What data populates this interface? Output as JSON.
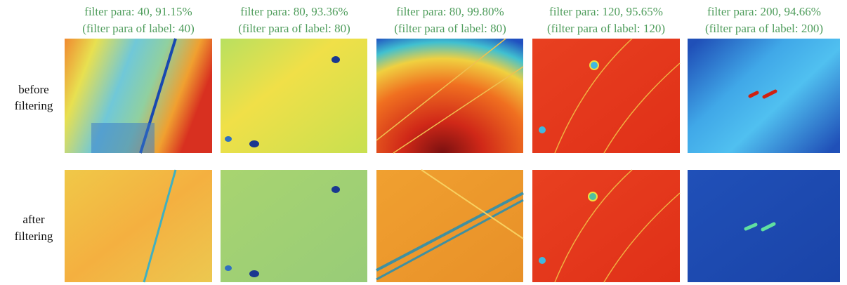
{
  "columns": [
    {
      "title": "filter para: 40, 91.15%",
      "subtitle": "(filter para of label: 40)"
    },
    {
      "title": "filter para: 80, 93.36%",
      "subtitle": "(filter para of label: 80)"
    },
    {
      "title": "filter para: 80, 99.80%",
      "subtitle": "(filter para of label: 80)"
    },
    {
      "title": "filter para: 120, 95.65%",
      "subtitle": "(filter para of label: 120)"
    },
    {
      "title": "filter para: 200, 94.66%",
      "subtitle": "(filter para of label: 200)"
    }
  ],
  "rows": [
    {
      "label": [
        "before",
        "filtering"
      ]
    },
    {
      "label": [
        "after",
        "filtering"
      ]
    }
  ]
}
